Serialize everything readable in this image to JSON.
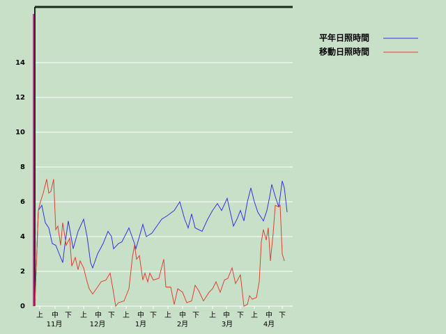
{
  "chart_data": {
    "type": "line",
    "xlim": [
      0,
      185
    ],
    "ylim": [
      0,
      17.2
    ],
    "yticks": [
      0,
      2,
      4,
      6,
      8,
      10,
      12,
      14
    ],
    "grid": true,
    "xticks": [
      {
        "value": 3.5,
        "label": "上"
      },
      {
        "value": 14.5,
        "label": "中"
      },
      {
        "value": 24,
        "label": "下"
      },
      {
        "value": 35,
        "label": "上"
      },
      {
        "value": 45.5,
        "label": "中"
      },
      {
        "value": 55,
        "label": "下"
      },
      {
        "value": 65.5,
        "label": "上"
      },
      {
        "value": 76,
        "label": "中"
      },
      {
        "value": 85,
        "label": "下"
      },
      {
        "value": 95.5,
        "label": "上"
      },
      {
        "value": 106,
        "label": "中"
      },
      {
        "value": 115.5,
        "label": "下"
      },
      {
        "value": 127.5,
        "label": "上"
      },
      {
        "value": 137.5,
        "label": "中"
      },
      {
        "value": 147.5,
        "label": "下"
      },
      {
        "value": 157.5,
        "label": "上"
      },
      {
        "value": 168,
        "label": "中"
      },
      {
        "value": 177.5,
        "label": "下"
      }
    ],
    "month_labels": [
      {
        "value": 14,
        "label": "11月"
      },
      {
        "value": 45,
        "label": "12月"
      },
      {
        "value": 76,
        "label": "1月"
      },
      {
        "value": 106,
        "label": "2月"
      },
      {
        "value": 138,
        "label": "3月"
      },
      {
        "value": 168,
        "label": "4月"
      }
    ],
    "series": [
      {
        "name": "平年日照時間",
        "color": "#3333dd",
        "x": [
          0,
          2.5,
          5,
          7.5,
          10,
          12.5,
          15,
          17.5,
          20,
          21.5,
          24,
          27.5,
          31,
          35,
          37.5,
          40,
          41.5,
          45,
          49,
          52.5,
          55,
          56.5,
          60,
          62.5,
          67.5,
          71.5,
          72.5,
          75,
          77.5,
          80,
          84,
          87.5,
          91,
          95,
          100,
          104,
          107.5,
          110,
          112.5,
          115,
          120,
          124,
          127.5,
          131,
          134,
          138,
          142.5,
          145,
          147.5,
          150,
          152.5,
          155,
          157.5,
          160,
          164,
          166.5,
          168.5,
          170,
          172.5,
          175,
          177.5,
          179,
          181
        ],
        "values": [
          0,
          5.5,
          5.8,
          4.8,
          4.5,
          3.6,
          3.5,
          3.0,
          2.5,
          3.5,
          4.9,
          3.3,
          4.3,
          5.0,
          4.0,
          2.5,
          2.2,
          3.0,
          3.6,
          4.3,
          4.0,
          3.3,
          3.6,
          3.7,
          4.5,
          3.6,
          3.3,
          4.0,
          4.7,
          4.0,
          4.2,
          4.6,
          5.0,
          5.2,
          5.5,
          6.0,
          5.0,
          4.5,
          5.3,
          4.5,
          4.3,
          5.0,
          5.5,
          5.9,
          5.5,
          6.2,
          4.6,
          5.0,
          5.5,
          4.9,
          6.0,
          6.8,
          6.0,
          5.4,
          4.9,
          5.5,
          6.3,
          7.0,
          6.3,
          5.7,
          7.2,
          6.8,
          5.4
        ]
      },
      {
        "name": "移動日照時間",
        "color": "#e04030",
        "x": [
          0,
          2.5,
          4,
          6,
          8.5,
          10,
          11.5,
          13.5,
          15,
          16.5,
          18.5,
          20,
          22.5,
          25,
          26.5,
          29,
          31,
          32.5,
          35,
          37.5,
          39,
          41.5,
          45,
          47.5,
          51,
          54,
          56,
          58,
          60,
          64,
          67.5,
          70,
          71.5,
          73,
          75,
          77.5,
          79,
          81,
          82.5,
          85,
          89,
          92.5,
          94,
          97.5,
          100,
          102.5,
          106,
          109,
          112.5,
          115,
          117.5,
          121,
          125,
          127.5,
          130,
          133,
          136,
          138.5,
          141.5,
          144,
          147.5,
          150,
          152.5,
          154,
          156,
          159,
          161,
          162.5,
          164,
          166,
          167.5,
          169,
          171,
          172.5,
          175,
          176,
          177.5,
          179
        ],
        "values": [
          0,
          5.5,
          6.0,
          6.5,
          7.3,
          6.5,
          6.6,
          7.3,
          4.4,
          4.6,
          3.5,
          4.8,
          3.5,
          3.9,
          2.3,
          2.8,
          2.1,
          2.6,
          2.2,
          1.4,
          1.0,
          0.7,
          1.1,
          1.4,
          1.5,
          1.9,
          1.0,
          0.0,
          0.2,
          0.3,
          1.0,
          2.8,
          3.5,
          2.7,
          2.9,
          1.5,
          1.9,
          1.4,
          1.9,
          1.5,
          1.6,
          2.7,
          1.1,
          1.1,
          0.1,
          1.0,
          0.8,
          0.2,
          0.3,
          1.2,
          0.9,
          0.3,
          0.8,
          1.0,
          1.4,
          0.8,
          1.5,
          1.6,
          2.2,
          1.3,
          1.8,
          0.0,
          0.1,
          0.6,
          0.4,
          0.5,
          1.4,
          3.7,
          4.4,
          3.8,
          4.5,
          2.6,
          4.2,
          5.8,
          5.7,
          5.8,
          3.0,
          2.6
        ]
      }
    ]
  }
}
